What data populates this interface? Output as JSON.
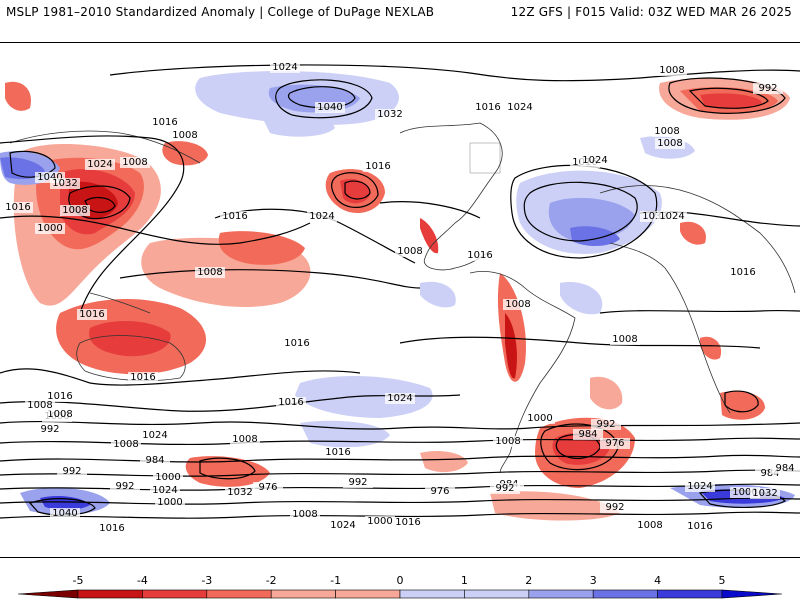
{
  "header": {
    "left_title": "MSLP 1981–2010 Standardized Anomaly | College of DuPage NEXLAB",
    "right_title": "12Z GFS | F015 Valid: 03Z WED MAR 26 2025"
  },
  "colorbar": {
    "ticks": [
      "-5",
      "-4",
      "-3",
      "-2",
      "-1",
      "0",
      "1",
      "2",
      "3",
      "4",
      "5"
    ],
    "colors": [
      "#7a0000",
      "#c81414",
      "#e63c3c",
      "#f26b5a",
      "#f8a898",
      "#ffffff",
      "#ccd0f6",
      "#9aa2ee",
      "#6b72e6",
      "#3b3bdc",
      "#0a0acc"
    ]
  },
  "isobar_labels": [
    "1024",
    "1040",
    "1032",
    "1016",
    "1024",
    "1016",
    "1008",
    "992",
    "1016",
    "1008",
    "1008",
    "1024",
    "1040",
    "1032",
    "1016",
    "1008",
    "1000",
    "1016",
    "1024",
    "1016",
    "1008",
    "1024",
    "1032",
    "1024",
    "1016",
    "1008",
    "1016",
    "1008",
    "1008",
    "1008",
    "1016",
    "1016",
    "1016",
    "1016",
    "1008",
    "1016",
    "1024",
    "1000",
    "992",
    "984",
    "976",
    "1008",
    "1016",
    "1008",
    "1008",
    "1000",
    "992",
    "1024",
    "1008",
    "984",
    "992",
    "1000",
    "992",
    "976",
    "984",
    "984",
    "992",
    "1008",
    "1024",
    "1016",
    "1000",
    "976",
    "1040",
    "1032",
    "992",
    "1008",
    "1024",
    "1000",
    "1016",
    "1008",
    "1000",
    "992",
    "1024",
    "1016",
    "1032",
    "984"
  ]
}
